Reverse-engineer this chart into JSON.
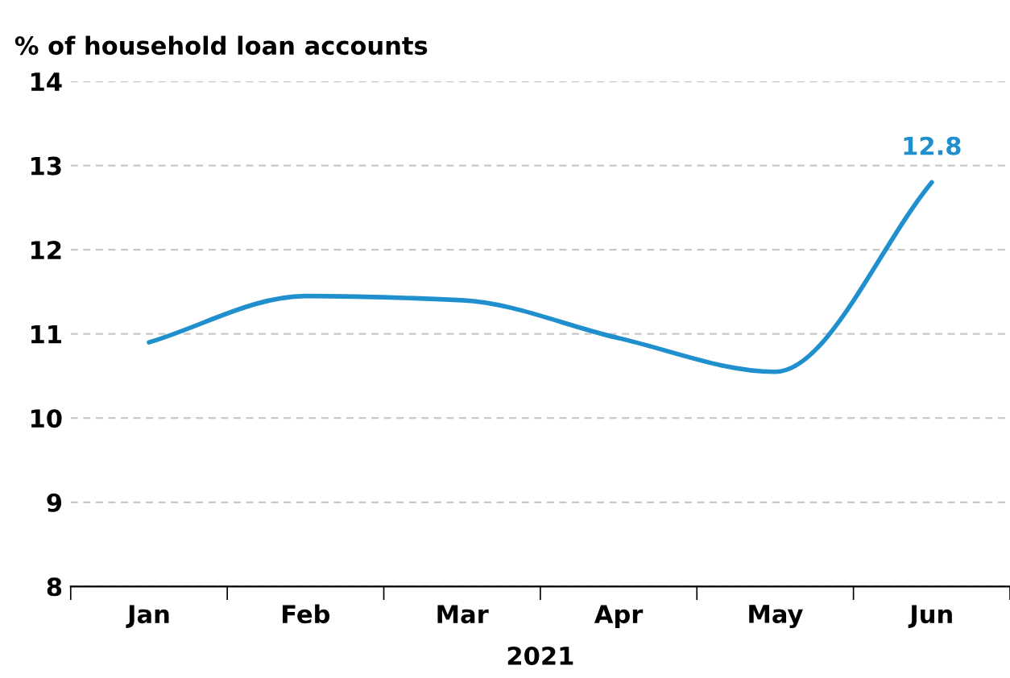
{
  "chart_data": {
    "type": "line",
    "title": "% of household loan accounts",
    "xlabel": "2021",
    "categories": [
      "Jan",
      "Feb",
      "Mar",
      "Apr",
      "May",
      "Jun"
    ],
    "series": [
      {
        "color": "#1f8fce",
        "values": [
          10.9,
          11.45,
          11.4,
          10.95,
          10.55,
          12.8
        ]
      }
    ],
    "ylim": [
      8,
      14
    ],
    "yticks": [
      8,
      9,
      10,
      11,
      12,
      13,
      14
    ],
    "grid": "y",
    "legend": false,
    "marker": "none",
    "line_style": "solid",
    "annotations": [
      {
        "text": "12.8",
        "x": "Jun",
        "y": 12.8
      }
    ]
  }
}
